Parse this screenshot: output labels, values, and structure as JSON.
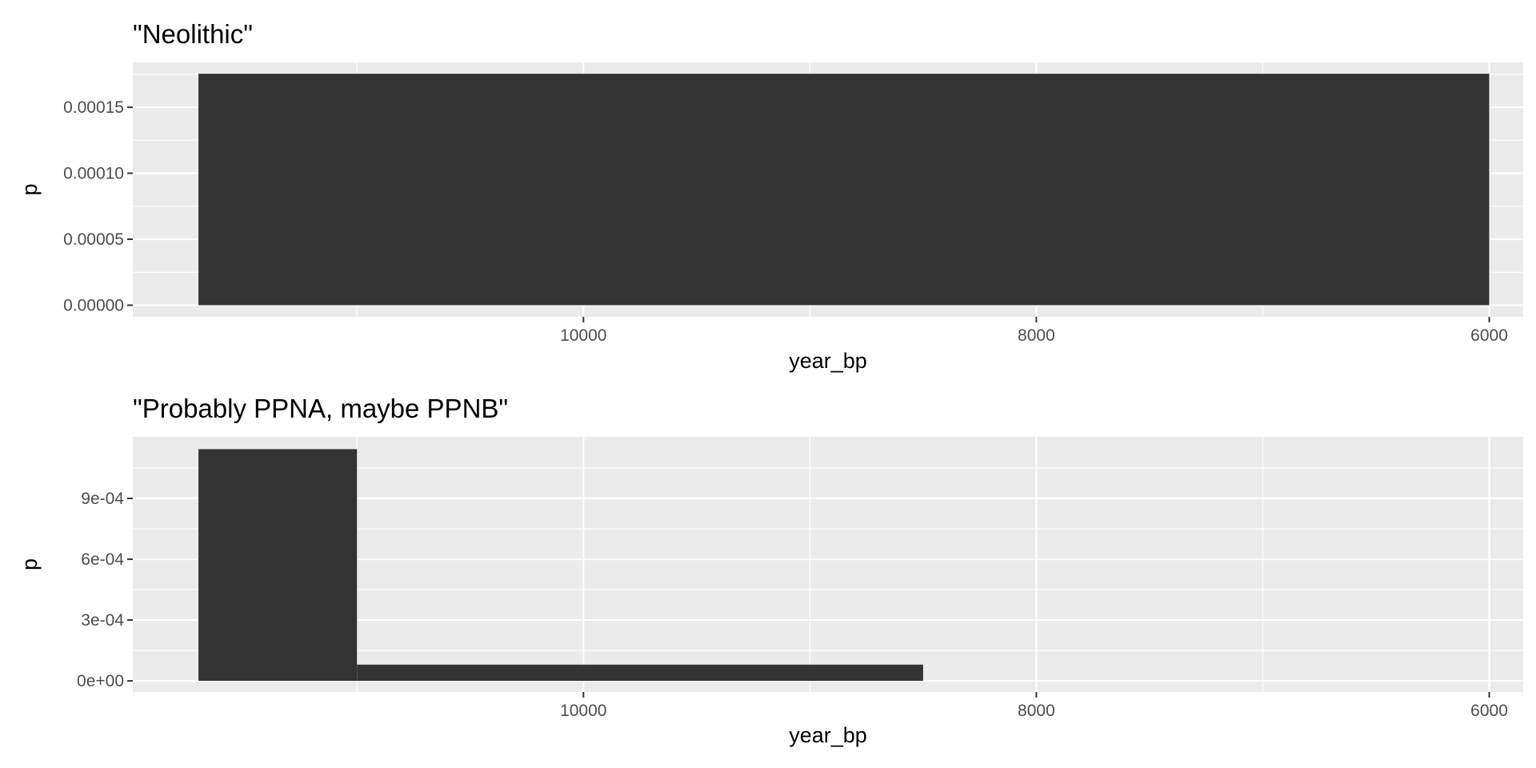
{
  "chart_data": [
    {
      "type": "bar",
      "title": "\"Neolithic\"",
      "xlabel": "year_bp",
      "ylabel": "p",
      "x_reversed": true,
      "xlim": [
        11990,
        5850
      ],
      "ylim": [
        -8.8e-06,
        0.000184
      ],
      "x_ticks": [
        10000,
        8000,
        6000
      ],
      "x_tick_labels": [
        "10000",
        "8000",
        "6000"
      ],
      "x_minor_ticks": [
        11000,
        9000,
        7000
      ],
      "y_ticks": [
        0,
        5e-05,
        0.0001,
        0.00015
      ],
      "y_tick_labels": [
        "0.00000",
        "0.00005",
        "0.00010",
        "0.00015"
      ],
      "y_minor_ticks": [
        2.5e-05,
        7.5e-05,
        0.000125,
        0.000175
      ],
      "grid": true,
      "bars": [
        {
          "x_start": 11700,
          "x_end": 6000,
          "value": 0.0001754
        }
      ]
    },
    {
      "type": "bar",
      "title": "\"Probably PPNA, maybe PPNB\"",
      "xlabel": "year_bp",
      "ylabel": "p",
      "x_reversed": true,
      "xlim": [
        11990,
        5850
      ],
      "ylim": [
        -5.5e-05,
        0.001204
      ],
      "x_ticks": [
        10000,
        8000,
        6000
      ],
      "x_tick_labels": [
        "10000",
        "8000",
        "6000"
      ],
      "x_minor_ticks": [
        11000,
        9000,
        7000
      ],
      "y_ticks": [
        0,
        0.0003,
        0.0006,
        0.0009
      ],
      "y_tick_labels": [
        "0e+00",
        "3e-04",
        "6e-04",
        "9e-04"
      ],
      "y_minor_ticks": [
        0.00015,
        0.00045,
        0.00075,
        0.00105
      ],
      "grid": true,
      "bars": [
        {
          "x_start": 11700,
          "x_end": 11000,
          "value": 0.001143
        },
        {
          "x_start": 11000,
          "x_end": 8500,
          "value": 8e-05
        }
      ]
    }
  ]
}
